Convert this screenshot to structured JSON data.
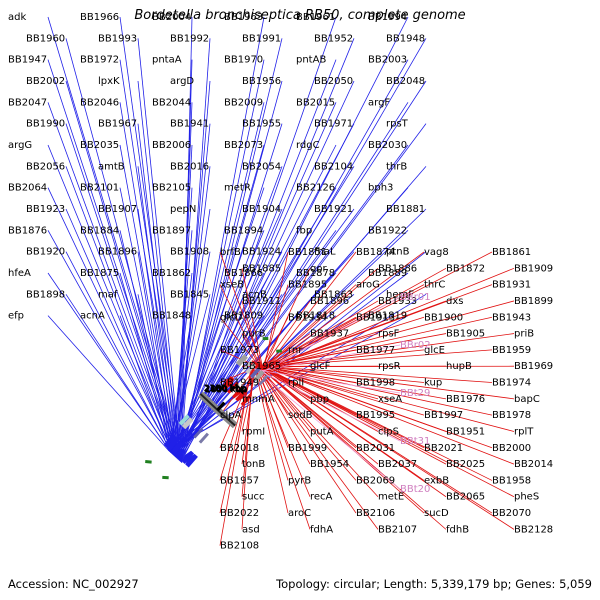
{
  "title": "Bordetella bronchiseptica RB50, complete genome",
  "footer": {
    "accession_label": "Accession:",
    "accession": "NC_002927",
    "topology_label": "Topology:",
    "topology": "circular;",
    "length_label": "Length:",
    "length": "5,339,179 bp;",
    "genes_label": "Genes:",
    "genes": "5,059"
  },
  "colors": {
    "forward": "#2020e8",
    "reverse": "#e01010",
    "rna": "#f0a0d8",
    "backbone": "#555555",
    "gc_marks": "#208020"
  },
  "ticks": [
    "1850 kbp",
    "1900 kbp",
    "1950 kbp",
    "2000 kbp",
    "2050 kbp",
    "2100 kbp",
    "2150 kbp",
    "2200 kbp",
    "2250 kbp",
    "2300 kbp"
  ],
  "labels_forward": [
    "adk",
    "BB1966",
    "BB2004",
    "BB1963",
    "BB1961",
    "BB1994",
    "BB1960",
    "BB1993",
    "BB1992",
    "BB1991",
    "BB1952",
    "BB1948",
    "BB1947",
    "BB1972",
    "pntaA",
    "BB1970",
    "pntAB",
    "BB2003",
    "BB2002",
    "lpxK",
    "argD",
    "BB1956",
    "BB2050",
    "BB2048",
    "BB2047",
    "BB2046",
    "BB2044",
    "BB2009",
    "BB2015",
    "argF",
    "BB1990",
    "BB1967",
    "BB1941",
    "BB1955",
    "BB1971",
    "rpsT",
    "argG",
    "BB2035",
    "BB2006",
    "BB2073",
    "rdgC",
    "BB2030",
    "BB2056",
    "amtB",
    "BB2016",
    "BB2054",
    "BB2104",
    "thrB",
    "BB2064",
    "BB2101",
    "BB2105",
    "metR",
    "BB2126",
    "bph3",
    "BB1923",
    "BB1907",
    "pepN",
    "BB1904",
    "BB1921",
    "BB1881",
    "BB1876",
    "BB1884",
    "BB1897",
    "BB1894",
    "fbp",
    "BB1922",
    "BB1920",
    "BB1896",
    "BB1908",
    "BB1924",
    "fhaL",
    "ptnB",
    "hfeA",
    "BB1875",
    "BB1862",
    "BB1866",
    "BB1878",
    "BB1889",
    "BB1898",
    "maf",
    "BB1845",
    "acnB",
    "BB1863",
    "hemF",
    "efp",
    "acnA",
    "BB1848",
    "BB1809",
    "BB1818",
    "BB1819"
  ],
  "labels_reverse": [
    "brfB",
    "BB1851",
    "BB1874",
    "vag8",
    "BB1861",
    "BB1885",
    "qor",
    "BB1886",
    "BB1872",
    "BB1909",
    "xseB",
    "BB1895",
    "aroG",
    "thrC",
    "BB1931",
    "BB1911",
    "BB1896",
    "BB1933",
    "dxs",
    "BB1899",
    "glcD",
    "BB1934",
    "BB1913",
    "BB1900",
    "BB1943",
    "purB",
    "BB1937",
    "rpsF",
    "BB1905",
    "priB",
    "BB1973",
    "rnr",
    "BB1977",
    "glcE",
    "BB1959",
    "BB1965",
    "glcF",
    "rpsR",
    "hupB",
    "BB1969",
    "BB1949",
    "rplI",
    "BB1998",
    "kup",
    "BB1974",
    "mnmA",
    "pbp",
    "xseA",
    "BB1976",
    "bapC",
    "clpA",
    "sodB",
    "BB1995",
    "BB1997",
    "BB1978",
    "rpmI",
    "putA",
    "clpS",
    "BB1951",
    "rplT",
    "BB2018",
    "BB1999",
    "BB2031",
    "BB2021",
    "BB2000",
    "tonB",
    "BB1954",
    "BB2037",
    "BB2025",
    "BB2014",
    "BB1957",
    "pyrB",
    "BB2069",
    "exbB",
    "BB1958",
    "succ",
    "recA",
    "metE",
    "BB2065",
    "pheS",
    "BB2022",
    "aroC",
    "BB2106",
    "sucD",
    "BB2070",
    "asd",
    "fdhA",
    "BB2107",
    "fdhB",
    "BB2128",
    "BB2108"
  ],
  "labels_rna": [
    "BBr01",
    "BBr02",
    "BBt29",
    "BBt31",
    "BBt20"
  ]
}
